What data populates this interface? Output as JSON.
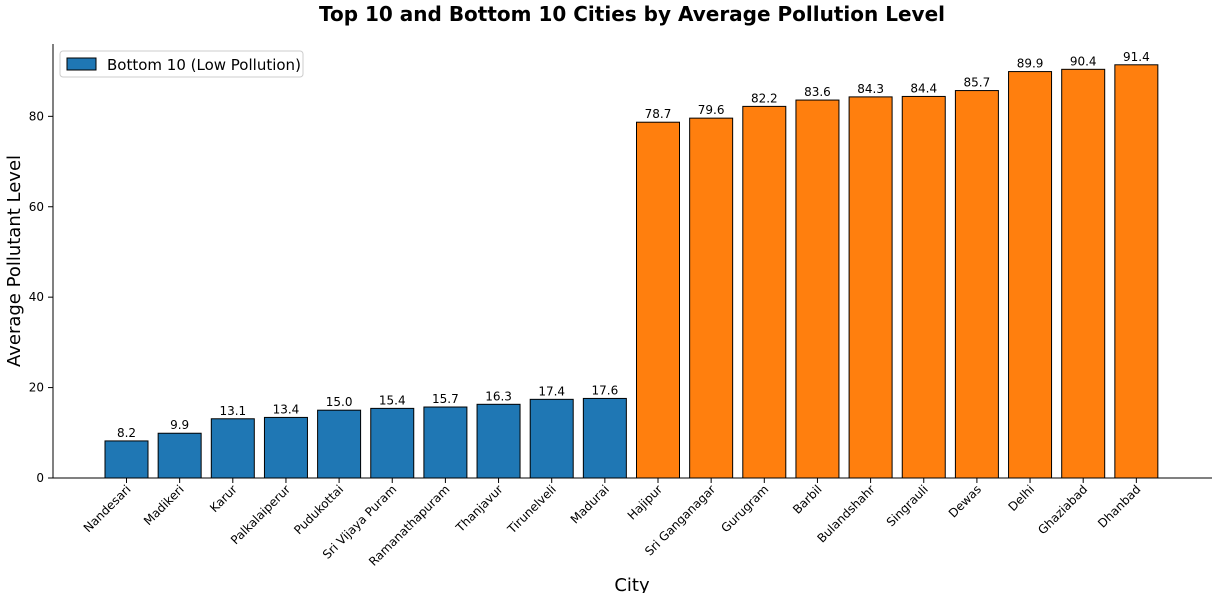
{
  "chart_data": {
    "type": "bar",
    "title": "Top 10 and Bottom 10 Cities by Average Pollution Level",
    "xlabel": "City",
    "ylabel": "Average Pollutant Level",
    "ylim": [
      0,
      96
    ],
    "yticks": [
      0,
      20,
      40,
      60,
      80
    ],
    "grid": false,
    "legend_position": "top-left",
    "categories": [
      "Nandesari",
      "Madikeri",
      "Karur",
      "Palkalaiperur",
      "Pudukottai",
      "Sri Vijaya Puram",
      "Ramanathapuram",
      "Thanjavur",
      "Tirunelveli",
      "Madurai",
      "Hajipur",
      "Sri Ganganagar",
      "Gurugram",
      "Barbil",
      "Bulandshahr",
      "Singrauli",
      "Dewas",
      "Delhi",
      "Ghaziabad",
      "Dhanbad"
    ],
    "values": [
      8.2,
      9.9,
      13.1,
      13.4,
      15.0,
      15.4,
      15.7,
      16.3,
      17.4,
      17.6,
      78.7,
      79.6,
      82.2,
      83.6,
      84.3,
      84.4,
      85.7,
      89.9,
      90.4,
      91.4
    ],
    "value_labels": [
      "8.2",
      "9.9",
      "13.1",
      "13.4",
      "15.0",
      "15.4",
      "15.7",
      "16.3",
      "17.4",
      "17.6",
      "78.7",
      "79.6",
      "82.2",
      "83.6",
      "84.3",
      "84.4",
      "85.7",
      "89.9",
      "90.4",
      "91.4"
    ],
    "groups": [
      "bottom",
      "bottom",
      "bottom",
      "bottom",
      "bottom",
      "bottom",
      "bottom",
      "bottom",
      "bottom",
      "bottom",
      "top",
      "top",
      "top",
      "top",
      "top",
      "top",
      "top",
      "top",
      "top",
      "top"
    ],
    "colors": {
      "bottom": "#1f77b4",
      "top": "#ff7f0e",
      "edge": "#000000"
    },
    "legend": [
      {
        "label": "Bottom 10 (Low Pollution)",
        "group": "bottom"
      }
    ]
  }
}
